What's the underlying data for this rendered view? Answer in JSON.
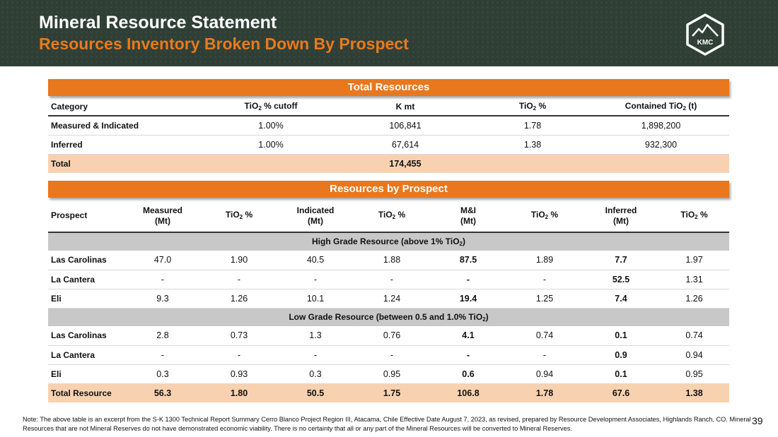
{
  "header": {
    "title": "Mineral Resource Statement",
    "subtitle": "Resources Inventory Broken Down By Prospect",
    "logo_text": "KMC"
  },
  "total_resources": {
    "bar_title": "Total Resources",
    "headers": {
      "category": "Category",
      "cutoff": "TiO",
      "cutoff_sub": "2",
      "cutoff_tail": " % cutoff",
      "kmt": "K mt",
      "tio2": "TiO",
      "tio2_sub": "2",
      "tio2_tail": " %",
      "contained": "Contained TiO",
      "contained_sub": "2",
      "contained_tail": " (t)"
    },
    "rows": [
      {
        "category": "Measured & Indicated",
        "cutoff": "1.00%",
        "kmt": "106,841",
        "tio2": "1.78",
        "contained": "1,898,200"
      },
      {
        "category": "Inferred",
        "cutoff": "1.00%",
        "kmt": "67,614",
        "tio2": "1.38",
        "contained": "932,300"
      }
    ],
    "total": {
      "category": "Total",
      "kmt": "174,455"
    }
  },
  "by_prospect": {
    "bar_title": "Resources by Prospect",
    "headers": {
      "prospect": "Prospect",
      "measured_1": "Measured",
      "measured_2": "(Mt)",
      "tio2": "TiO",
      "sub": "2",
      "pct": " %",
      "indicated_1": "Indicated",
      "indicated_2": "(Mt)",
      "mi_1": "M&I",
      "mi_2": "(Mt)",
      "inferred_1": "Inferred",
      "inferred_2": "(Mt)"
    },
    "high_grade": {
      "label": "High Grade Resource (above 1% TiO",
      "label_sub": "2",
      "label_tail": ")",
      "rows": [
        {
          "prospect": "Las Carolinas",
          "measured": "47.0",
          "m_tio2": "1.90",
          "indicated": "40.5",
          "i_tio2": "1.88",
          "mi": "87.5",
          "mi_tio2": "1.89",
          "inferred": "7.7",
          "inf_tio2": "1.97"
        },
        {
          "prospect": "La Cantera",
          "measured": "-",
          "m_tio2": "-",
          "indicated": "-",
          "i_tio2": "-",
          "mi": "-",
          "mi_tio2": "-",
          "inferred": "52.5",
          "inf_tio2": "1.31"
        },
        {
          "prospect": "Eli",
          "measured": "9.3",
          "m_tio2": "1.26",
          "indicated": "10.1",
          "i_tio2": "1.24",
          "mi": "19.4",
          "mi_tio2": "1.25",
          "inferred": "7.4",
          "inf_tio2": "1.26"
        }
      ]
    },
    "low_grade": {
      "label": "Low Grade Resource (between 0.5 and 1.0% TiO",
      "label_sub": "2",
      "label_tail": ")",
      "rows": [
        {
          "prospect": "Las Carolinas",
          "measured": "2.8",
          "m_tio2": "0.73",
          "indicated": "1.3",
          "i_tio2": "0.76",
          "mi": "4.1",
          "mi_tio2": "0.74",
          "inferred": "0.1",
          "inf_tio2": "0.74"
        },
        {
          "prospect": "La Cantera",
          "measured": "-",
          "m_tio2": "-",
          "indicated": "-",
          "i_tio2": "-",
          "mi": "-",
          "mi_tio2": "-",
          "inferred": "0.9",
          "inf_tio2": "0.94"
        },
        {
          "prospect": "Eli",
          "measured": "0.3",
          "m_tio2": "0.93",
          "indicated": "0.3",
          "i_tio2": "0.95",
          "mi": "0.6",
          "mi_tio2": "0.94",
          "inferred": "0.1",
          "inf_tio2": "0.95"
        }
      ]
    },
    "total": {
      "prospect": "Total Resource",
      "measured": "56.3",
      "m_tio2": "1.80",
      "indicated": "50.5",
      "i_tio2": "1.75",
      "mi": "106.8",
      "mi_tio2": "1.78",
      "inferred": "67.6",
      "inf_tio2": "1.38"
    }
  },
  "footer": {
    "note": "Note: The above table is an excerpt from the S-K 1300 Technical Report Summary Cerro Blanco Project Region III, Atacama, Chile Effective Date August 7, 2023, as revised, prepared by Resource Development Associates, Highlands Ranch, CO. Mineral Resources that are not Mineral Reserves do not have demonstrated economic viability. There is no certainty that all or any part of the Mineral Resources will be converted to Mineral Reserves.",
    "page_number": "39"
  },
  "colors": {
    "header_bg": "#2f3f36",
    "accent_orange": "#e8771e",
    "total_row": "#f8d2b0",
    "section_gray": "#c8c8c8"
  }
}
